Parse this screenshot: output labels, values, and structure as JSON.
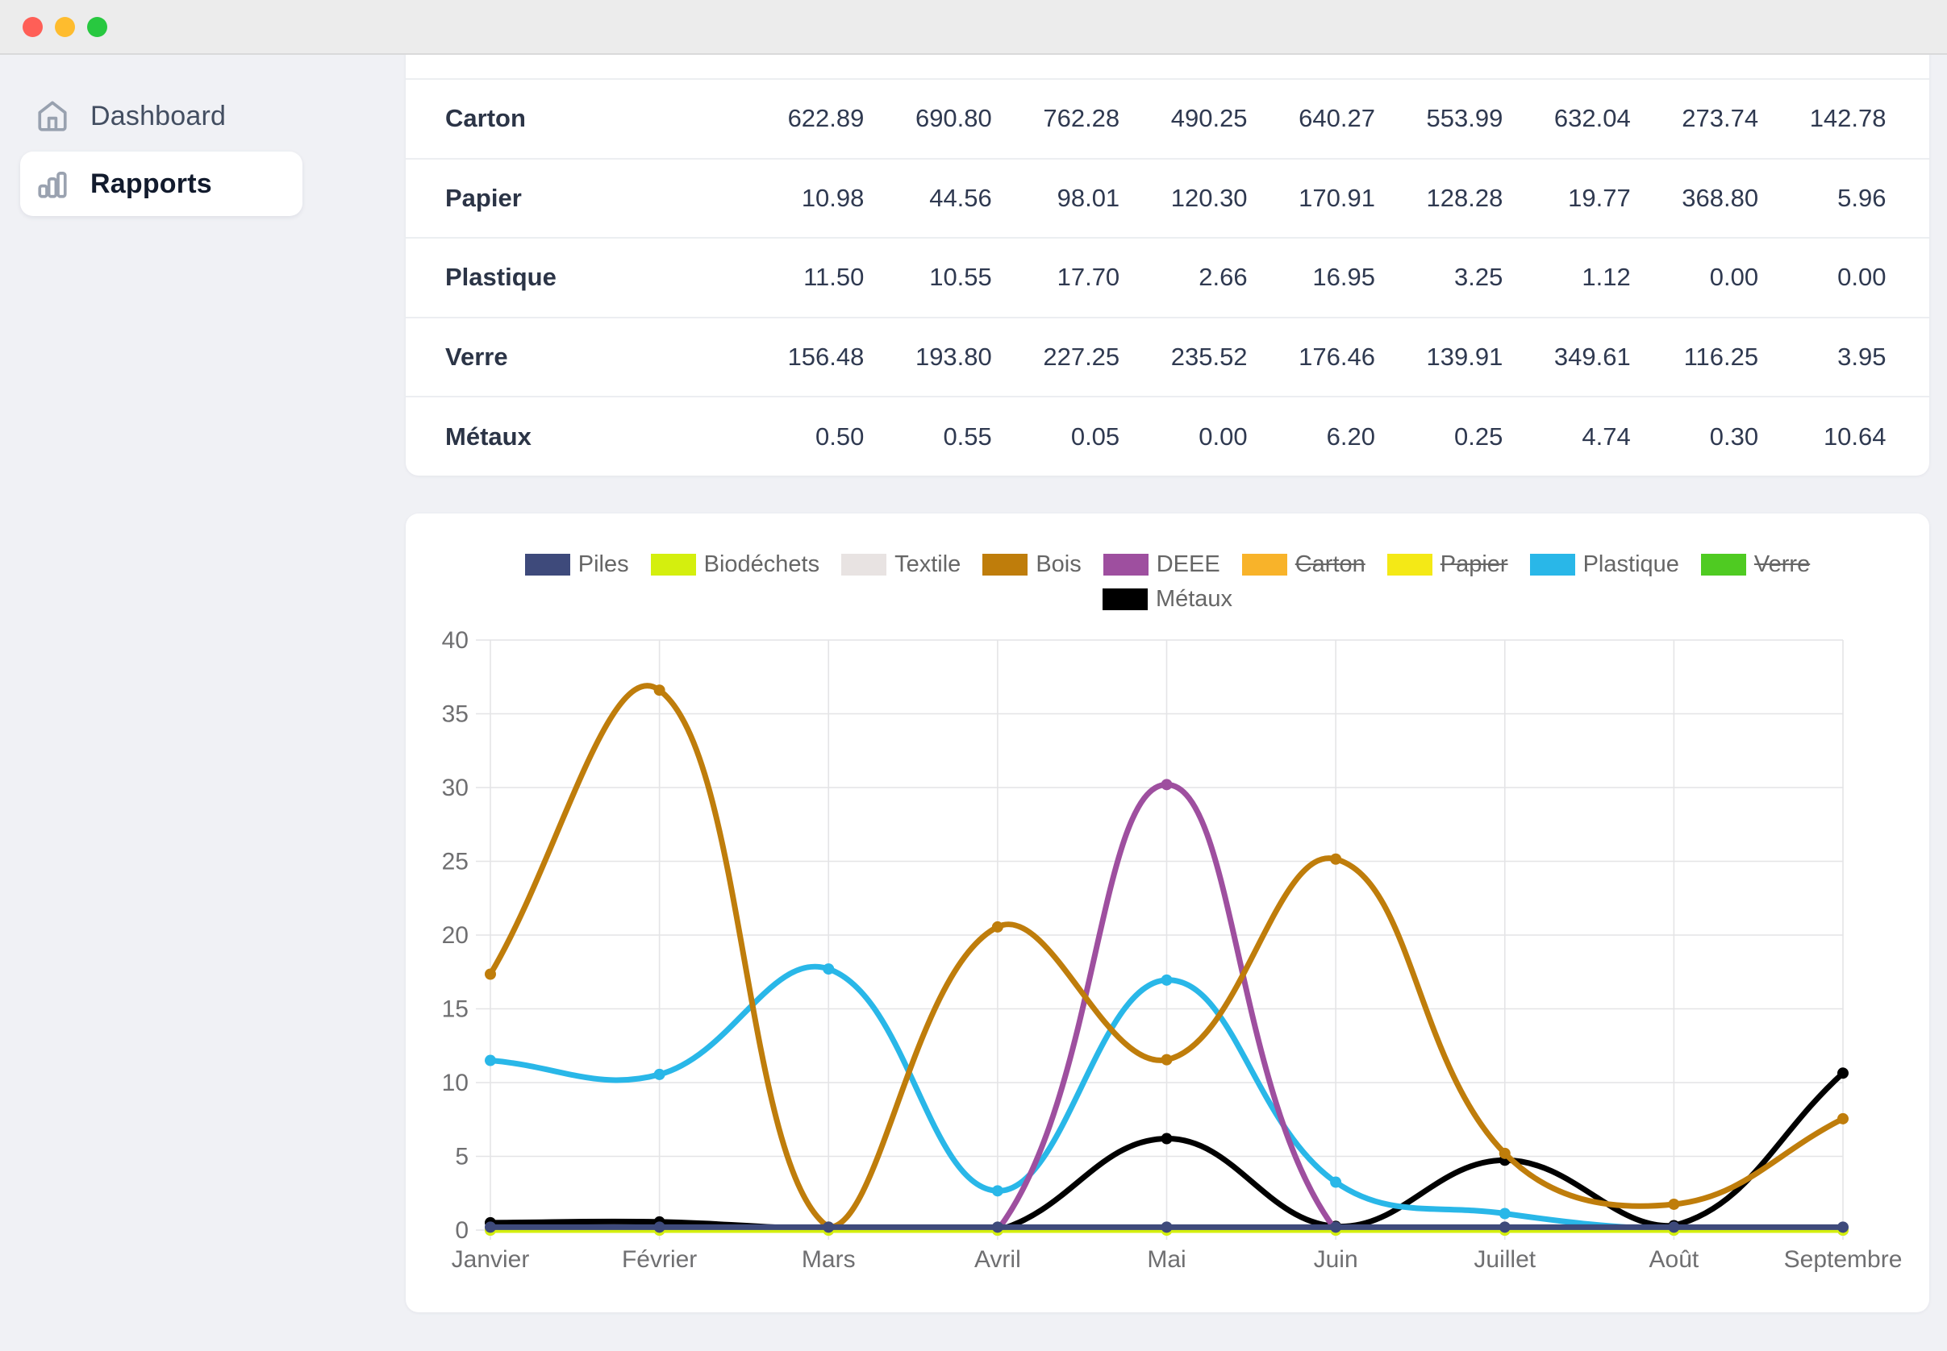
{
  "titlebar": {
    "traffic_lights": {
      "close": "#ff5f57",
      "minimize": "#febc2e",
      "zoom": "#28c840"
    }
  },
  "sidebar": {
    "items": [
      {
        "label": "Dashboard",
        "icon": "home-icon",
        "active": false
      },
      {
        "label": "Rapports",
        "icon": "bar-chart-icon",
        "active": true
      }
    ]
  },
  "table": {
    "rows": [
      {
        "label": "Carton",
        "values": [
          "622.89",
          "690.80",
          "762.28",
          "490.25",
          "640.27",
          "553.99",
          "632.04",
          "273.74",
          "142.78"
        ]
      },
      {
        "label": "Papier",
        "values": [
          "10.98",
          "44.56",
          "98.01",
          "120.30",
          "170.91",
          "128.28",
          "19.77",
          "368.80",
          "5.96"
        ]
      },
      {
        "label": "Plastique",
        "values": [
          "11.50",
          "10.55",
          "17.70",
          "2.66",
          "16.95",
          "3.25",
          "1.12",
          "0.00",
          "0.00"
        ]
      },
      {
        "label": "Verre",
        "values": [
          "156.48",
          "193.80",
          "227.25",
          "235.52",
          "176.46",
          "139.91",
          "349.61",
          "116.25",
          "3.95"
        ]
      },
      {
        "label": "Métaux",
        "values": [
          "0.50",
          "0.55",
          "0.05",
          "0.00",
          "6.20",
          "0.25",
          "4.74",
          "0.30",
          "10.64"
        ]
      }
    ]
  },
  "chart_data": {
    "type": "line",
    "categories": [
      "Janvier",
      "Février",
      "Mars",
      "Avril",
      "Mai",
      "Juin",
      "Juillet",
      "Août",
      "Septembre"
    ],
    "y_ticks": [
      0,
      5,
      10,
      15,
      20,
      25,
      30,
      35,
      40
    ],
    "ylim": [
      0,
      40
    ],
    "grid": true,
    "legend_position": "top",
    "grid_color": "#e4e4e6",
    "tick_label_color": "#6f6f71",
    "series": [
      {
        "name": "Piles",
        "color": "#3e4a7b",
        "hidden": false,
        "values": [
          0.2,
          0.2,
          0.2,
          0.2,
          0.2,
          0.2,
          0.2,
          0.2,
          0.2
        ]
      },
      {
        "name": "Biodéchets",
        "color": "#d4ef0e",
        "hidden": false,
        "values": [
          0,
          0,
          0,
          0,
          0,
          0,
          0,
          0,
          0
        ]
      },
      {
        "name": "Textile",
        "color": "#e8e3e2",
        "hidden": false,
        "values": [
          0,
          0,
          0,
          0,
          0,
          0,
          0,
          0,
          0
        ]
      },
      {
        "name": "Bois",
        "color": "#bf7d0b",
        "hidden": false,
        "values": [
          17.35,
          36.6,
          0.2,
          20.55,
          11.55,
          25.15,
          5.2,
          1.75,
          7.55
        ]
      },
      {
        "name": "DEEE",
        "color": "#9e4f9f",
        "hidden": false,
        "values": [
          0,
          0,
          0,
          0,
          30.2,
          0,
          0,
          0,
          0
        ]
      },
      {
        "name": "Carton",
        "color": "#f8b32a",
        "hidden": true,
        "values": [
          622.89,
          690.8,
          762.28,
          490.25,
          640.27,
          553.99,
          632.04,
          273.74,
          142.78
        ]
      },
      {
        "name": "Papier",
        "color": "#f4e916",
        "hidden": true,
        "values": [
          10.98,
          44.56,
          98.01,
          120.3,
          170.91,
          128.28,
          19.77,
          368.8,
          5.96
        ]
      },
      {
        "name": "Plastique",
        "color": "#29b7e8",
        "hidden": false,
        "values": [
          11.5,
          10.55,
          17.7,
          2.66,
          16.95,
          3.25,
          1.12,
          0,
          0
        ]
      },
      {
        "name": "Verre",
        "color": "#4fcb22",
        "hidden": true,
        "values": [
          156.48,
          193.8,
          227.25,
          235.52,
          176.46,
          139.91,
          349.61,
          116.25,
          3.95
        ]
      },
      {
        "name": "Métaux",
        "color": "#000000",
        "hidden": false,
        "values": [
          0.5,
          0.55,
          0.05,
          0,
          6.2,
          0.25,
          4.74,
          0.3,
          10.64
        ]
      }
    ]
  }
}
